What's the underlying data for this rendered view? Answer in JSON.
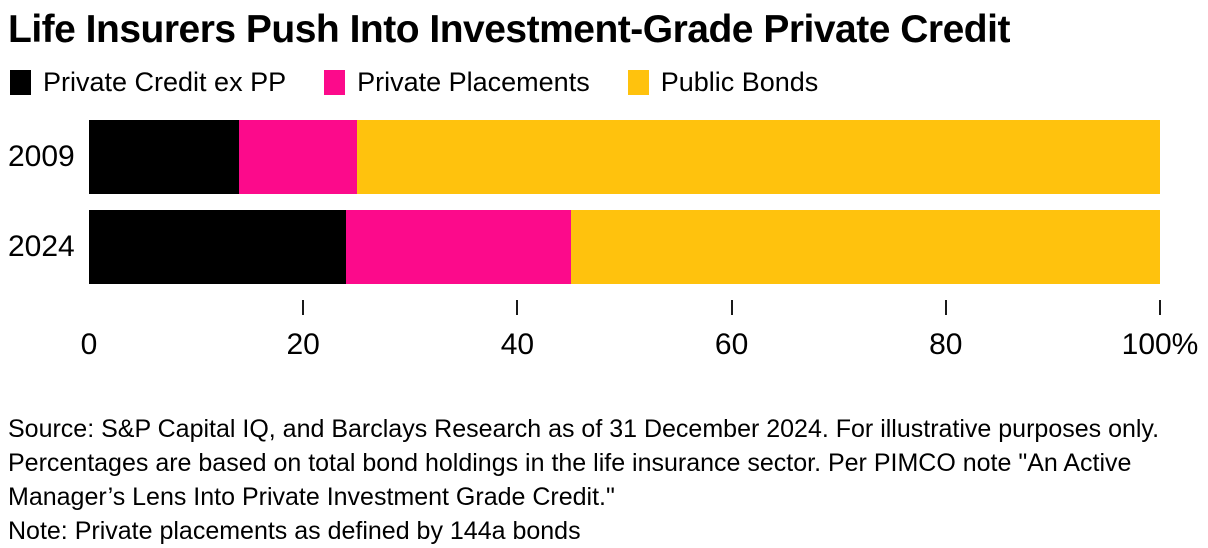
{
  "title": "Life Insurers Push Into Investment-Grade Private Credit",
  "legend": [
    {
      "label": "Private Credit ex PP",
      "color": "#000000"
    },
    {
      "label": "Private Placements",
      "color": "#fc0a8b"
    },
    {
      "label": "Public Bonds",
      "color": "#ffc20d"
    }
  ],
  "chart_data": {
    "type": "bar",
    "orientation": "horizontal",
    "stacked": true,
    "title": "Life Insurers Push Into Investment-Grade Private Credit",
    "categories": [
      "2009",
      "2024"
    ],
    "series": [
      {
        "name": "Private Credit ex PP",
        "color": "#000000",
        "values": [
          14,
          24
        ]
      },
      {
        "name": "Private Placements",
        "color": "#fc0a8b",
        "values": [
          11,
          21
        ]
      },
      {
        "name": "Public Bonds",
        "color": "#ffc20d",
        "values": [
          75,
          55
        ]
      }
    ],
    "xlim": [
      0,
      100
    ],
    "x_unit": "%",
    "x_ticks": [
      20,
      40,
      60,
      80,
      100
    ],
    "x_tick_labels": [
      {
        "value": 0,
        "label": "0"
      },
      {
        "value": 20,
        "label": "20"
      },
      {
        "value": 40,
        "label": "40"
      },
      {
        "value": 60,
        "label": "60"
      },
      {
        "value": 80,
        "label": "80"
      },
      {
        "value": 100,
        "label": "100%"
      }
    ],
    "legend_position": "top",
    "grid": false
  },
  "footer": {
    "lines": [
      "Source: S&P Capital IQ, and Barclays Research as of 31 December 2024. For illustrative purposes only.",
      "Percentages are based on total bond holdings in the life insurance sector. Per PIMCO note \"An Active",
      "Manager’s Lens Into Private Investment Grade Credit.\"",
      "Note: Private placements as defined by 144a bonds"
    ]
  }
}
